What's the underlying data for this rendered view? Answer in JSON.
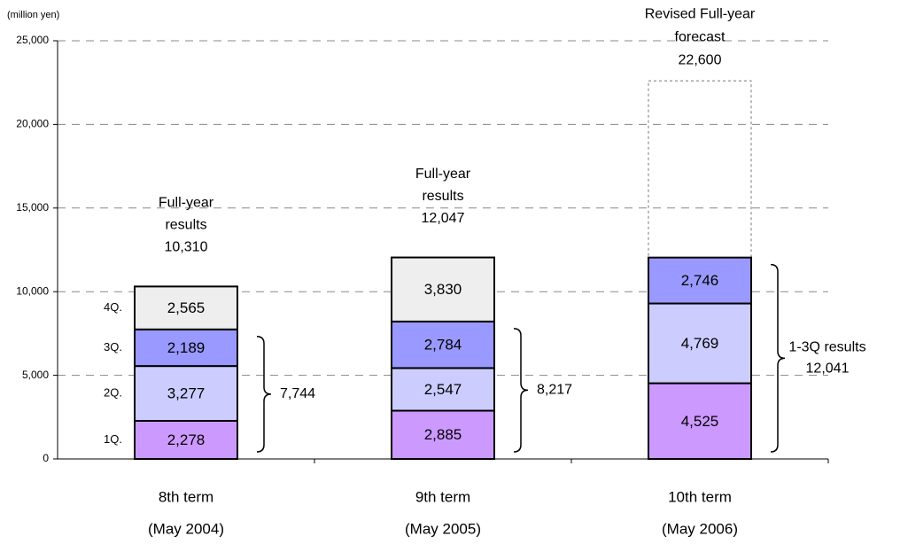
{
  "chart_data": {
    "type": "stacked-bar",
    "unit_label": "(million yen)",
    "categories": [
      "8th term",
      "9th term",
      "10th term"
    ],
    "category_dates": [
      "(May 2004)",
      "(May 2005)",
      "(May 2006)"
    ],
    "series": [
      {
        "name": "1Q.",
        "color": "#cc99ff",
        "values": [
          2278,
          2885,
          4525
        ],
        "value_labels": [
          "2,278",
          "2,885",
          "4,525"
        ]
      },
      {
        "name": "2Q.",
        "color": "#ccccff",
        "values": [
          3277,
          2547,
          4769
        ],
        "value_labels": [
          "3,277",
          "2,547",
          "4,769"
        ]
      },
      {
        "name": "3Q.",
        "color": "#9999ff",
        "values": [
          2189,
          2784,
          2746
        ],
        "value_labels": [
          "2,189",
          "2,784",
          "2,746"
        ]
      },
      {
        "name": "4Q.",
        "color": "#eeeeee",
        "values": [
          2565,
          3830,
          null
        ],
        "value_labels": [
          "2,565",
          "3,830",
          null
        ]
      }
    ],
    "totals": {
      "label_lines": [
        "Full-year",
        "results"
      ],
      "values": [
        10310,
        12047
      ],
      "value_labels": [
        "10,310",
        "12,047"
      ]
    },
    "forecast": {
      "label_lines": [
        "Revised Full-year",
        "forecast"
      ],
      "category_index": 2,
      "value": 22600,
      "value_label": "22,600"
    },
    "sums": {
      "label": "1-3Q results",
      "values": [
        7744,
        8217,
        12041
      ],
      "value_labels": [
        "7,744",
        "8,217",
        "12,041"
      ]
    },
    "ylim": [
      0,
      25000
    ],
    "yticks": [
      {
        "value": 0,
        "label": "0"
      },
      {
        "value": 5000,
        "label": "5,000"
      },
      {
        "value": 10000,
        "label": "10,000"
      },
      {
        "value": 15000,
        "label": "15,000"
      },
      {
        "value": 20000,
        "label": "20,000"
      },
      {
        "value": 25000,
        "label": "25,000"
      }
    ],
    "grid": true
  }
}
